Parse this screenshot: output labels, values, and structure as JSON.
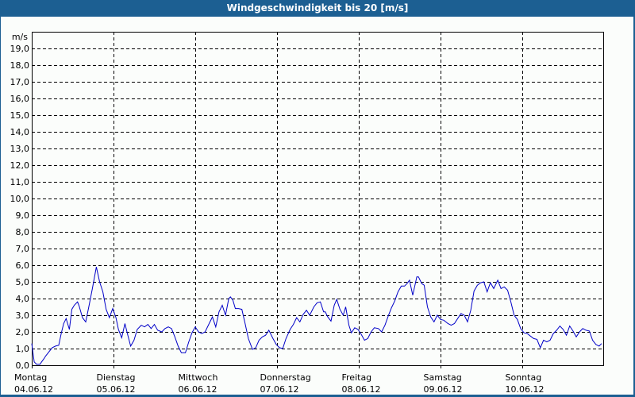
{
  "window": {
    "title": "Windgeschwindigkeit bis 20 [m/s]"
  },
  "colors": {
    "frame": "#1c5f92",
    "background": "#fbfdfb",
    "line": "#0000c8",
    "grid": "#000000"
  },
  "chart_data": {
    "type": "line",
    "title": "Windgeschwindigkeit bis 20 [m/s]",
    "xlabel": "",
    "ylabel": "m/s",
    "ylim": [
      0,
      20
    ],
    "grid": true,
    "grid_style": "dashed",
    "legend": "none",
    "y_ticks": [
      "0,0",
      "1,0",
      "2,0",
      "3,0",
      "4,0",
      "5,0",
      "6,0",
      "7,0",
      "8,0",
      "9,0",
      "10,0",
      "11,0",
      "12,0",
      "13,0",
      "14,0",
      "15,0",
      "16,0",
      "17,0",
      "18,0",
      "19,0"
    ],
    "x_ticks": [
      {
        "day": "Montag",
        "date": "04.06.12"
      },
      {
        "day": "Dienstag",
        "date": "05.06.12"
      },
      {
        "day": "Mittwoch",
        "date": "06.06.12"
      },
      {
        "day": "Donnerstag",
        "date": "07.06.12"
      },
      {
        "day": "Freitag",
        "date": "08.06.12"
      },
      {
        "day": "Samstag",
        "date": "09.06.12"
      },
      {
        "day": "Sonntag",
        "date": "10.06.12"
      }
    ],
    "x_unit": "days since 04.06.12 00:00",
    "series": [
      {
        "name": "Windgeschwindigkeit",
        "x": [
          0,
          0.03,
          0.06,
          0.1,
          0.12,
          0.15,
          0.17,
          0.21,
          0.25,
          0.29,
          0.33,
          0.36,
          0.39,
          0.42,
          0.46,
          0.49,
          0.52,
          0.56,
          0.58,
          0.62,
          0.66,
          0.7,
          0.74,
          0.79,
          0.83,
          0.87,
          0.91,
          0.95,
          0.99,
          1.03,
          1.06,
          1.1,
          1.14,
          1.17,
          1.21,
          1.25,
          1.29,
          1.34,
          1.38,
          1.42,
          1.46,
          1.5,
          1.54,
          1.59,
          1.63,
          1.67,
          1.71,
          1.75,
          1.79,
          1.83,
          1.88,
          1.92,
          1.96,
          2.0,
          2.04,
          2.08,
          2.12,
          2.17,
          2.21,
          2.25,
          2.29,
          2.33,
          2.37,
          2.41,
          2.43,
          2.46,
          2.49,
          2.53,
          2.57,
          2.61,
          2.65,
          2.7,
          2.74,
          2.78,
          2.82,
          2.86,
          2.9,
          2.95,
          2.99,
          3.03,
          3.07,
          3.11,
          3.16,
          3.2,
          3.24,
          3.28,
          3.32,
          3.36,
          3.4,
          3.45,
          3.49,
          3.53,
          3.57,
          3.59,
          3.62,
          3.66,
          3.7,
          3.73,
          3.77,
          3.81,
          3.84,
          3.88,
          3.91,
          3.95,
          3.99,
          4.03,
          4.07,
          4.11,
          4.15,
          4.19,
          4.24,
          4.28,
          4.32,
          4.36,
          4.4,
          4.44,
          4.48,
          4.52,
          4.56,
          4.59,
          4.62,
          4.66,
          4.71,
          4.73,
          4.77,
          4.8,
          4.84,
          4.88,
          4.92,
          4.96,
          5.0,
          5.04,
          5.09,
          5.13,
          5.17,
          5.21,
          5.25,
          5.29,
          5.33,
          5.37,
          5.41,
          5.45,
          5.49,
          5.53,
          5.57,
          5.61,
          5.65,
          5.7,
          5.74,
          5.78,
          5.82,
          5.86,
          5.9,
          5.94,
          5.98,
          6.02,
          6.06,
          6.1,
          6.14,
          6.18,
          6.22,
          6.26,
          6.3,
          6.34,
          6.38,
          6.42,
          6.46,
          6.5,
          6.54,
          6.58,
          6.62,
          6.66,
          6.7,
          6.74,
          6.78,
          6.82,
          6.86,
          6.9,
          6.94,
          6.97
        ],
        "values": [
          1.3,
          0.2,
          0.05,
          0.05,
          0.2,
          0.4,
          0.55,
          0.8,
          1.05,
          1.15,
          1.2,
          1.9,
          2.5,
          2.8,
          2.15,
          3.35,
          3.6,
          3.8,
          3.55,
          2.85,
          2.6,
          3.55,
          4.55,
          5.9,
          5.0,
          4.4,
          3.35,
          2.85,
          3.4,
          2.85,
          2.15,
          1.65,
          2.5,
          1.9,
          1.15,
          1.5,
          2.15,
          2.4,
          2.3,
          2.45,
          2.2,
          2.45,
          2.1,
          2.0,
          2.2,
          2.3,
          2.2,
          1.7,
          1.15,
          0.75,
          0.75,
          1.4,
          1.95,
          2.3,
          2.0,
          1.9,
          2.0,
          2.5,
          2.9,
          2.3,
          3.2,
          3.6,
          3.0,
          4.0,
          4.1,
          3.9,
          3.4,
          3.4,
          3.35,
          2.5,
          1.6,
          0.95,
          1.05,
          1.5,
          1.7,
          1.8,
          2.1,
          1.6,
          1.25,
          1.05,
          1.0,
          1.6,
          2.15,
          2.45,
          2.85,
          2.6,
          3.05,
          3.3,
          3.0,
          3.5,
          3.75,
          3.8,
          3.2,
          3.2,
          2.9,
          2.65,
          3.6,
          3.95,
          3.35,
          3.0,
          3.5,
          2.4,
          1.95,
          2.25,
          2.15,
          1.85,
          1.5,
          1.6,
          2.0,
          2.25,
          2.2,
          2.0,
          2.4,
          2.95,
          3.45,
          3.85,
          4.4,
          4.75,
          4.75,
          4.9,
          5.1,
          4.2,
          5.3,
          5.3,
          4.9,
          4.8,
          3.5,
          2.9,
          2.6,
          3.0,
          2.75,
          2.7,
          2.5,
          2.4,
          2.5,
          2.8,
          3.1,
          3.0,
          2.6,
          3.3,
          4.45,
          4.8,
          4.95,
          5.0,
          4.4,
          4.95,
          4.6,
          5.1,
          4.6,
          4.7,
          4.5,
          3.8,
          3.0,
          2.75,
          2.2,
          1.95,
          1.9,
          1.75,
          1.6,
          1.55,
          1.05,
          1.5,
          1.4,
          1.5,
          1.9,
          2.1,
          2.35,
          2.15,
          1.8,
          2.35,
          2.05,
          1.7,
          2.0,
          2.2,
          2.1,
          2.05,
          1.5,
          1.25,
          1.15,
          1.3
        ]
      }
    ]
  }
}
